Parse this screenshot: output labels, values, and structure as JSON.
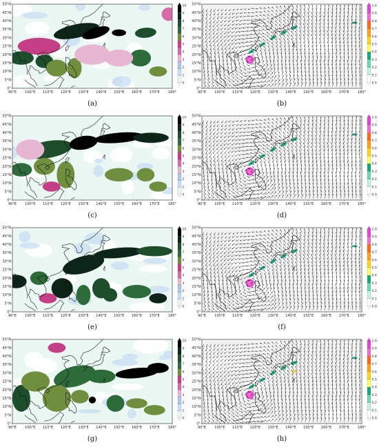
{
  "figure": {
    "lon_ticks": [
      "90°E",
      "100°E",
      "110°E",
      "120°E",
      "130°E",
      "140°E",
      "150°E",
      "160°E",
      "170°E",
      "180°"
    ],
    "lat_ticks": [
      "0°",
      "5°N",
      "10°N",
      "15°N",
      "20°N",
      "25°N",
      "30°N",
      "35°N",
      "40°N",
      "45°N",
      "50°N"
    ],
    "left_colorbar": {
      "ticks_a": [
        "0",
        "1",
        "2",
        "3",
        "4",
        "5",
        "6",
        "7",
        "8",
        "9",
        "10"
      ],
      "colors": [
        "#eaf7f2",
        "#c9dff4",
        "#b3c6ee",
        "#e7b6d2",
        "#d56ca8",
        "#c43f86",
        "#6f8f3e",
        "#2d6b3a",
        "#1e4d2b",
        "#0d2418",
        "#000000"
      ]
    },
    "right_colorbar": {
      "ticks": [
        "0.0",
        "0.1",
        "0.2",
        "0.3",
        "0.4",
        "0.5",
        "0.6",
        "0.7",
        "0.8",
        "0.9",
        "1.0"
      ],
      "colors": [
        "#ffffff",
        "#c7efe0",
        "#6fd8b0",
        "#1aa67c",
        "#ffff66",
        "#ffd21f",
        "#ffa01a",
        "#ff6a1a",
        "#f06fc8",
        "#e244d6"
      ]
    },
    "panels": [
      {
        "id": "a",
        "caption": "(a)",
        "kind": "scalar"
      },
      {
        "id": "b",
        "caption": "(b)",
        "kind": "vector"
      },
      {
        "id": "c",
        "caption": "(c)",
        "kind": "scalar"
      },
      {
        "id": "d",
        "caption": "(d)",
        "kind": "vector"
      },
      {
        "id": "e",
        "caption": "(e)",
        "kind": "scalar"
      },
      {
        "id": "f",
        "caption": "(f)",
        "kind": "vector"
      },
      {
        "id": "g",
        "caption": "(g)",
        "kind": "scalar"
      },
      {
        "id": "h",
        "caption": "(h)",
        "kind": "vector"
      }
    ]
  }
}
